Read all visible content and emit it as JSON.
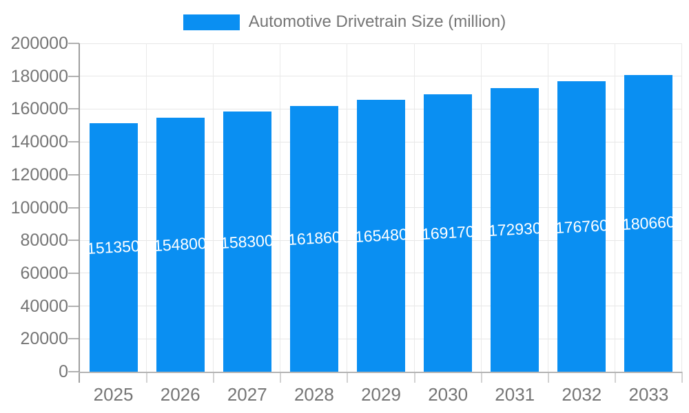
{
  "chart_data": {
    "type": "bar",
    "title": "Automotive Drivetrain Size (million)",
    "categories": [
      "2025",
      "2026",
      "2027",
      "2028",
      "2029",
      "2030",
      "2031",
      "2032",
      "2033"
    ],
    "series": [
      {
        "name": "Automotive Drivetrain Size (million)",
        "values": [
          151350,
          154800,
          158300,
          161860,
          165480,
          169170,
          172930,
          176760,
          180660
        ]
      }
    ],
    "bar_labels": [
      "151350",
      "154800",
      "158300",
      "161860",
      "165480",
      "169170",
      "172930",
      "176760",
      "180660"
    ],
    "xlabel": "",
    "ylabel": "",
    "ylim": [
      0,
      200000
    ],
    "ytick_step": 20000,
    "ytick_labels": [
      "0",
      "20000",
      "40000",
      "60000",
      "80000",
      "100000",
      "120000",
      "140000",
      "160000",
      "180000",
      "200000"
    ],
    "grid": true,
    "legend_position": "top",
    "colors": {
      "bar": "#0a8ff2",
      "bar_label_text": "#ffffff",
      "axis_text": "#757575",
      "gridline": "#e6e6e6",
      "axis_line": "#9e9e9e",
      "baseline": "#b3b3b3",
      "tick": "#b0b0b0"
    }
  }
}
